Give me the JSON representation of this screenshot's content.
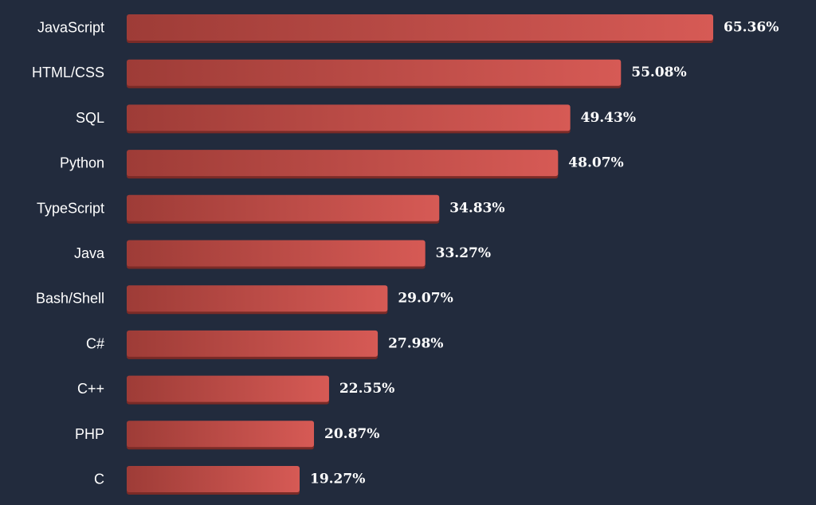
{
  "chart_data": {
    "type": "bar",
    "orientation": "horizontal",
    "categories": [
      "JavaScript",
      "HTML/CSS",
      "SQL",
      "Python",
      "TypeScript",
      "Java",
      "Bash/Shell",
      "C#",
      "C++",
      "PHP",
      "C"
    ],
    "values": [
      65.36,
      55.08,
      49.43,
      48.07,
      34.83,
      33.27,
      29.07,
      27.98,
      22.55,
      20.87,
      19.27
    ],
    "value_labels": [
      "65.36%",
      "55.08%",
      "49.43%",
      "48.07%",
      "34.83%",
      "33.27%",
      "29.07%",
      "27.98%",
      "22.55%",
      "20.87%",
      "19.27%"
    ],
    "title": "",
    "xlabel": "",
    "ylabel": "",
    "grid": false,
    "legend": "none"
  },
  "colors": {
    "background": "#222b3d",
    "bar_start": "#9e3c37",
    "bar_end": "#d65a55",
    "bar_shadow": "#7a2b27",
    "text": "#ffffff"
  }
}
